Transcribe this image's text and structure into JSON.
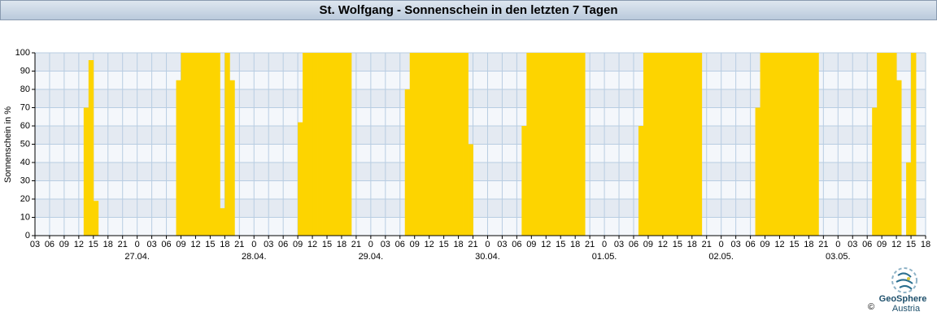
{
  "chart_data": {
    "type": "bar",
    "title": "St. Wolfgang - Sonnenschein in den letzten 7 Tagen",
    "y_label": "Sonnenschein in %",
    "annotations": [
      "GeoSphere",
      "Austria",
      "©"
    ],
    "series": [
      {
        "name": "Sonnenschein",
        "color": "#fdd400",
        "x": [
          10,
          11,
          12,
          29,
          30,
          31,
          32,
          33,
          34,
          35,
          36,
          37,
          38,
          39,
          40,
          54,
          55,
          56,
          57,
          58,
          59,
          60,
          61,
          62,
          63,
          64,
          76,
          77,
          78,
          79,
          80,
          81,
          82,
          83,
          84,
          85,
          86,
          87,
          88,
          89,
          100,
          101,
          102,
          103,
          104,
          105,
          106,
          107,
          108,
          109,
          110,
          111,
          112,
          124,
          125,
          126,
          127,
          128,
          129,
          130,
          131,
          132,
          133,
          134,
          135,
          136,
          148,
          149,
          150,
          151,
          152,
          153,
          154,
          155,
          156,
          157,
          158,
          159,
          160,
          172,
          173,
          174,
          175,
          176,
          177,
          179,
          180
        ],
        "values": [
          70,
          96,
          19,
          85,
          100,
          100,
          100,
          100,
          100,
          100,
          100,
          100,
          15,
          100,
          85,
          62,
          100,
          100,
          100,
          100,
          100,
          100,
          100,
          100,
          100,
          100,
          80,
          100,
          100,
          100,
          100,
          100,
          100,
          100,
          100,
          100,
          100,
          100,
          100,
          50,
          60,
          100,
          100,
          100,
          100,
          100,
          100,
          100,
          100,
          100,
          100,
          100,
          100,
          60,
          100,
          100,
          100,
          100,
          100,
          100,
          100,
          100,
          100,
          100,
          100,
          100,
          70,
          100,
          100,
          100,
          100,
          100,
          100,
          100,
          100,
          100,
          100,
          100,
          100,
          70,
          100,
          100,
          100,
          100,
          85,
          40,
          100
        ]
      }
    ],
    "xlim": [
      0,
      183
    ],
    "xticks": [
      {
        "value": 0,
        "label": "03"
      },
      {
        "value": 3,
        "label": "06"
      },
      {
        "value": 6,
        "label": "09"
      },
      {
        "value": 9,
        "label": "12"
      },
      {
        "value": 12,
        "label": "15"
      },
      {
        "value": 15,
        "label": "18"
      },
      {
        "value": 18,
        "label": "21"
      },
      {
        "value": 21,
        "label": "0"
      },
      {
        "value": 24,
        "label": "03"
      },
      {
        "value": 27,
        "label": "06"
      },
      {
        "value": 30,
        "label": "09"
      },
      {
        "value": 33,
        "label": "12"
      },
      {
        "value": 36,
        "label": "15"
      },
      {
        "value": 39,
        "label": "18"
      },
      {
        "value": 42,
        "label": "21"
      },
      {
        "value": 45,
        "label": "0"
      },
      {
        "value": 48,
        "label": "03"
      },
      {
        "value": 51,
        "label": "06"
      },
      {
        "value": 54,
        "label": "09"
      },
      {
        "value": 57,
        "label": "12"
      },
      {
        "value": 60,
        "label": "15"
      },
      {
        "value": 63,
        "label": "18"
      },
      {
        "value": 66,
        "label": "21"
      },
      {
        "value": 69,
        "label": "0"
      },
      {
        "value": 72,
        "label": "03"
      },
      {
        "value": 75,
        "label": "06"
      },
      {
        "value": 78,
        "label": "09"
      },
      {
        "value": 81,
        "label": "12"
      },
      {
        "value": 84,
        "label": "15"
      },
      {
        "value": 87,
        "label": "18"
      },
      {
        "value": 90,
        "label": "21"
      },
      {
        "value": 93,
        "label": "0"
      },
      {
        "value": 96,
        "label": "03"
      },
      {
        "value": 99,
        "label": "06"
      },
      {
        "value": 102,
        "label": "09"
      },
      {
        "value": 105,
        "label": "12"
      },
      {
        "value": 108,
        "label": "15"
      },
      {
        "value": 111,
        "label": "18"
      },
      {
        "value": 114,
        "label": "21"
      },
      {
        "value": 117,
        "label": "0"
      },
      {
        "value": 120,
        "label": "03"
      },
      {
        "value": 123,
        "label": "06"
      },
      {
        "value": 126,
        "label": "09"
      },
      {
        "value": 129,
        "label": "12"
      },
      {
        "value": 132,
        "label": "15"
      },
      {
        "value": 135,
        "label": "18"
      },
      {
        "value": 138,
        "label": "21"
      },
      {
        "value": 141,
        "label": "0"
      },
      {
        "value": 144,
        "label": "03"
      },
      {
        "value": 147,
        "label": "06"
      },
      {
        "value": 150,
        "label": "09"
      },
      {
        "value": 153,
        "label": "12"
      },
      {
        "value": 156,
        "label": "15"
      },
      {
        "value": 159,
        "label": "18"
      },
      {
        "value": 162,
        "label": "21"
      },
      {
        "value": 165,
        "label": "0"
      },
      {
        "value": 168,
        "label": "03"
      },
      {
        "value": 171,
        "label": "06"
      },
      {
        "value": 174,
        "label": "09"
      },
      {
        "value": 177,
        "label": "12"
      },
      {
        "value": 180,
        "label": "15"
      },
      {
        "value": 183,
        "label": "18"
      }
    ],
    "day_labels": [
      {
        "value": 21,
        "label": "27.04."
      },
      {
        "value": 45,
        "label": "28.04."
      },
      {
        "value": 69,
        "label": "29.04."
      },
      {
        "value": 93,
        "label": "30.04."
      },
      {
        "value": 117,
        "label": "01.05."
      },
      {
        "value": 141,
        "label": "02.05."
      },
      {
        "value": 165,
        "label": "03.05."
      }
    ],
    "ylim": [
      0,
      100
    ],
    "yticks": [
      0,
      10,
      20,
      30,
      40,
      50,
      60,
      70,
      80,
      90,
      100
    ],
    "grid": true
  }
}
